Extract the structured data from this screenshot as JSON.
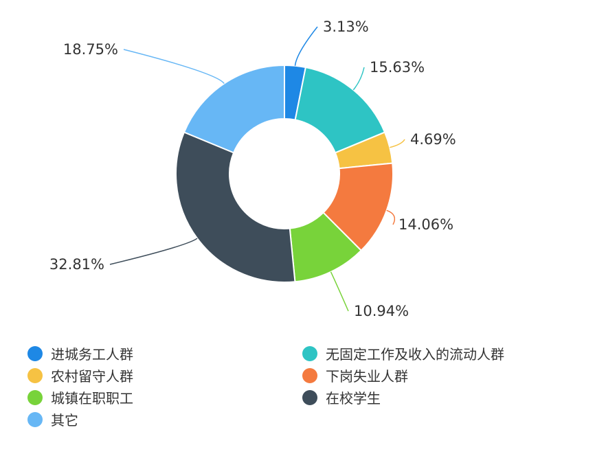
{
  "chart_data": {
    "type": "pie",
    "donut": true,
    "title": "",
    "legend_position": "bottom",
    "categories": [
      "进城务工人群",
      "无固定工作及收入的流动人群",
      "农村留守人群",
      "下岗失业人群",
      "城镇在职职工",
      "在校学生",
      "其它"
    ],
    "values": [
      3.13,
      15.63,
      4.69,
      14.06,
      10.94,
      32.81,
      18.75
    ],
    "labels": [
      "3.13%",
      "15.63%",
      "4.69%",
      "14.06%",
      "10.94%",
      "32.81%",
      "18.75%"
    ],
    "colors": [
      "#1e88e5",
      "#2ec4c4",
      "#f6c243",
      "#f47a3f",
      "#78d33a",
      "#3e4d5a",
      "#67b7f5"
    ]
  }
}
